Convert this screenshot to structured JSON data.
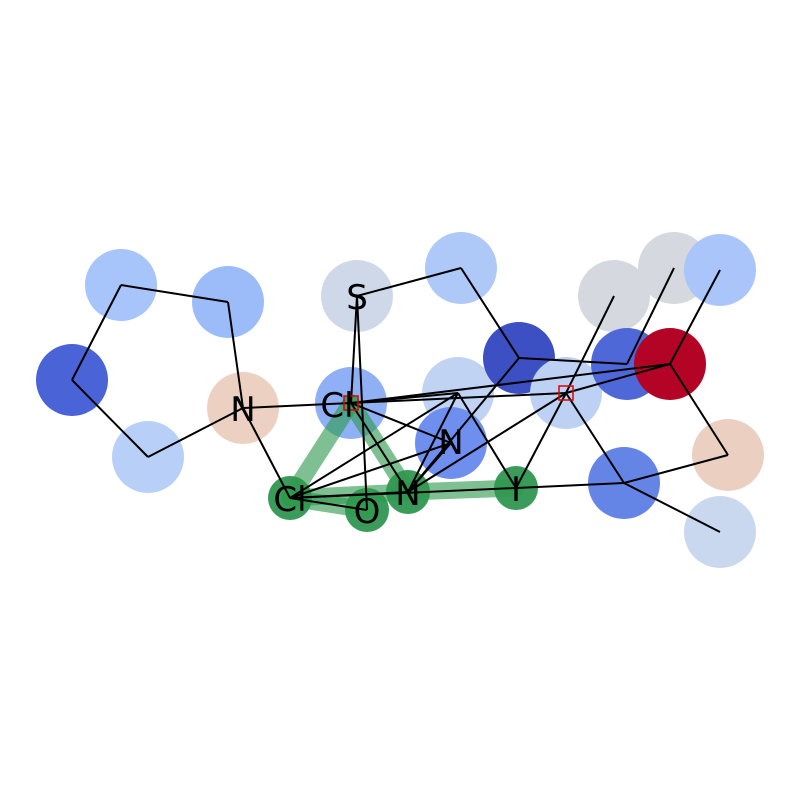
{
  "palette": {
    "highlight_bond": "#2e9a4e",
    "highlight_atom": "#3a9b5a",
    "bond": "#000000",
    "marker": "#e00000"
  },
  "atoms": [
    {
      "id": "a1",
      "label": "",
      "color": "#a7c4fb"
    },
    {
      "id": "a2",
      "label": "",
      "color": "#9bbcf9"
    },
    {
      "id": "a3",
      "label": "",
      "color": "#4a63d6"
    },
    {
      "id": "a4",
      "label": "",
      "color": "#b8d0f7"
    },
    {
      "id": "a5",
      "label": "N",
      "color": "#ecd1c2"
    },
    {
      "id": "a6",
      "label": "S",
      "color": "#cfd8e8"
    },
    {
      "id": "a7",
      "label": "",
      "color": "#aec8f8"
    },
    {
      "id": "a8",
      "label": "Cl",
      "color": "#8fb0f5"
    },
    {
      "id": "a9",
      "label": "",
      "color": "#c0d3f3"
    },
    {
      "id": "a10",
      "label": "N",
      "color": "#6f8fef"
    },
    {
      "id": "a11",
      "label": "",
      "color": "#3d50c3"
    },
    {
      "id": "a12",
      "label": "",
      "color": "#bcd1f3"
    },
    {
      "id": "a13",
      "label": "",
      "color": "#d5d9df"
    },
    {
      "id": "a14",
      "label": "",
      "color": "#d5d9df"
    },
    {
      "id": "a15",
      "label": "",
      "color": "#a9c5fa"
    },
    {
      "id": "a16",
      "label": "",
      "color": "#4e68d8"
    },
    {
      "id": "a17",
      "label": "",
      "color": "#b40426"
    },
    {
      "id": "a18",
      "label": "",
      "color": "#ebd0c1"
    },
    {
      "id": "a19",
      "label": "",
      "color": "#6585e6"
    },
    {
      "id": "a20",
      "label": "",
      "color": "#c9d8ee"
    },
    {
      "id": "a21",
      "label": "Cl",
      "color": "#3a9b5a"
    },
    {
      "id": "a22",
      "label": "O",
      "color": "#3a9b5a"
    },
    {
      "id": "a23",
      "label": "N",
      "color": "#3a9b5a"
    },
    {
      "id": "a24",
      "label": "I",
      "color": "#3a9b5a"
    }
  ]
}
